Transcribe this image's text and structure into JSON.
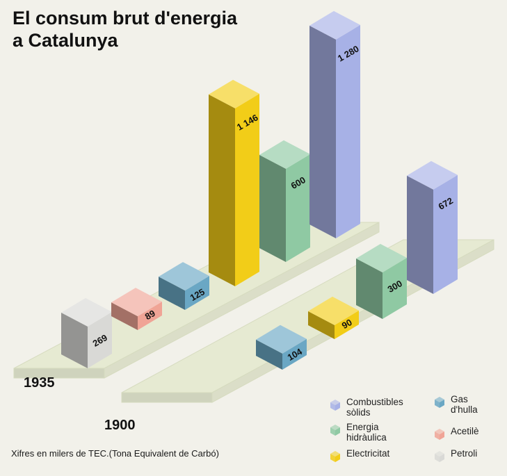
{
  "title_line1": "El consum brut d'energia",
  "title_line2": "a Catalunya",
  "note": "Xifres en milers de TEC.(Tona Equivalent de Carbó)",
  "colors": {
    "combustibles_solids": "#a7b1e6",
    "energia_hidraulica": "#8fc9a3",
    "electricitat": "#f2cd18",
    "gas_hulla": "#6aa7c4",
    "acetile": "#f0a496",
    "petroli": "#d9d9d6",
    "platform": "#e6ead2"
  },
  "legend": [
    {
      "key": "combustibles_solids",
      "label": "Combustibles\nsòlids"
    },
    {
      "key": "energia_hidraulica",
      "label": "Energia\nhidràulica"
    },
    {
      "key": "electricitat",
      "label": "Electricitat"
    },
    {
      "key": "gas_hulla",
      "label": "Gas\nd'hulla"
    },
    {
      "key": "acetile",
      "label": "Acetilè"
    },
    {
      "key": "petroli",
      "label": "Petroli"
    }
  ],
  "chart_data": {
    "type": "bar",
    "title": "El consum brut d'energia a Catalunya",
    "unit": "milers de TEC",
    "groups": [
      {
        "year": "1935",
        "bars": [
          {
            "series": "Petroli",
            "key": "petroli",
            "value": 269,
            "label": "269"
          },
          {
            "series": "Acetilè",
            "key": "acetile",
            "value": 89,
            "label": "89"
          },
          {
            "series": "Gas d'hulla",
            "key": "gas_hulla",
            "value": 125,
            "label": "125"
          },
          {
            "series": "Electricitat",
            "key": "electricitat",
            "value": 1146,
            "label": "1 146"
          },
          {
            "series": "Energia hidràulica",
            "key": "energia_hidraulica",
            "value": 600,
            "label": "600"
          },
          {
            "series": "Combustibles sòlids",
            "key": "combustibles_solids",
            "value": 1280,
            "label": "1 280"
          }
        ]
      },
      {
        "year": "1900",
        "bars": [
          {
            "series": "Gas d'hulla",
            "key": "gas_hulla",
            "value": 104,
            "label": "104"
          },
          {
            "series": "Electricitat",
            "key": "electricitat",
            "value": 90,
            "label": "90"
          },
          {
            "series": "Energia hidràulica",
            "key": "energia_hidraulica",
            "value": 300,
            "label": "300"
          },
          {
            "series": "Combustibles sòlids",
            "key": "combustibles_solids",
            "value": 672,
            "label": "672"
          }
        ]
      }
    ]
  }
}
